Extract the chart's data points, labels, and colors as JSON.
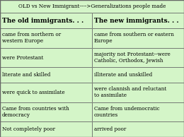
{
  "title": "OLD vs New Immigrant---->Generalizations people made",
  "col1_header": "The old immigrants. . .",
  "col2_header": "The new immigrants. . .",
  "rows": [
    [
      "came from northern or\nwestern Europe",
      "came from southern or eastern\nEurope"
    ],
    [
      "were Protestant",
      "majority not Protestant--were\nCatholic, Orthodox, Jewish"
    ],
    [
      "literate and skilled",
      "illiterate and unskilled"
    ],
    [
      "were quick to assimilate",
      "were clannish and reluctant\nto assimilate"
    ],
    [
      "Came from countries with\ndemocracy",
      "Came from undemocratic\ncountries"
    ],
    [
      "Not completely poor",
      "arrived poor"
    ]
  ],
  "bg_color": "#d4f5c8",
  "title_bg": "#d4f5c8",
  "border_color": "#666666",
  "title_fontsize": 5.2,
  "header_fontsize": 6.5,
  "cell_fontsize": 5.2,
  "fig_width": 2.6,
  "fig_height": 1.94,
  "col_split": 0.5
}
